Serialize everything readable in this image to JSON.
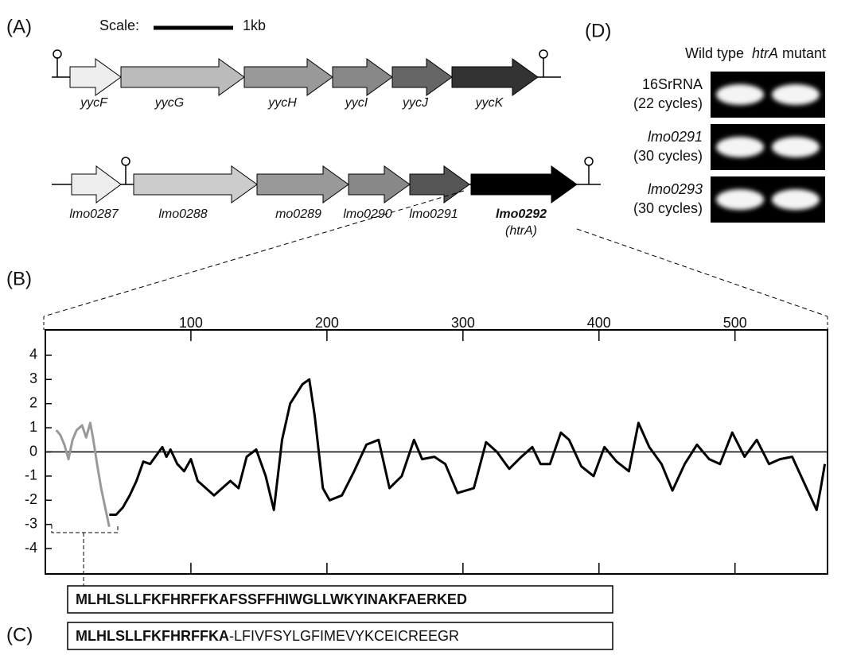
{
  "panel_a": {
    "label": "(A)",
    "scale_label": "Scale:",
    "scale_unit": "1kb",
    "operon1": {
      "genes": [
        "yycF",
        "yycG",
        "yycH",
        "yycI",
        "yycJ",
        "yycK"
      ]
    },
    "operon2": {
      "genes": [
        "lmo0287",
        "lmo0288",
        "mo0289",
        "lmo0290",
        "lmo0291",
        "lmo0292"
      ],
      "htra_label": "(htrA)"
    }
  },
  "chart_data": {
    "type": "line",
    "label": "(B)",
    "xlim": [
      -7,
      568
    ],
    "xticks": [
      100,
      200,
      300,
      400,
      500
    ],
    "ylim": [
      -5.05,
      5.05
    ],
    "yticks": [
      -4,
      -3,
      -2,
      -1,
      0,
      1,
      2,
      3,
      4
    ],
    "zero_line": true,
    "series": [
      {
        "color": "#999999",
        "x": [
          1,
          4,
          7,
          10,
          13,
          16,
          20,
          23,
          26,
          28,
          31,
          34,
          37,
          40
        ],
        "values": [
          0.9,
          0.7,
          0.3,
          -0.3,
          0.5,
          0.9,
          1.1,
          0.6,
          1.2,
          0.6,
          -0.5,
          -1.5,
          -2.3,
          -3.1
        ]
      },
      {
        "color": "#000000",
        "x": [
          40,
          45,
          50,
          55,
          60,
          65,
          70,
          79,
          82,
          85,
          90,
          95,
          100,
          105,
          117,
          129,
          135,
          141,
          148,
          155,
          161,
          167,
          173,
          182,
          187,
          191,
          197,
          202,
          211,
          220,
          229,
          238,
          246,
          255,
          264,
          270,
          279,
          287,
          296,
          308,
          317,
          325,
          334,
          343,
          351,
          357,
          364,
          372,
          378,
          387,
          396,
          404,
          413,
          422,
          429,
          437,
          446,
          454,
          463,
          472,
          481,
          489,
          498,
          507,
          516,
          525,
          533,
          542,
          551,
          560,
          563,
          566
        ],
        "values": [
          -2.6,
          -2.6,
          -2.3,
          -1.8,
          -1.2,
          -0.4,
          -0.5,
          0.2,
          -0.2,
          0.1,
          -0.5,
          -0.8,
          -0.3,
          -1.2,
          -1.8,
          -1.2,
          -1.5,
          -0.2,
          0.1,
          -1,
          -2.4,
          0.5,
          2.0,
          2.8,
          3.0,
          1.5,
          -1.5,
          -2,
          -1.8,
          -0.8,
          0.3,
          0.5,
          -1.5,
          -1,
          0.5,
          -0.3,
          -0.2,
          -0.5,
          -1.7,
          -1.5,
          0.4,
          0,
          -0.7,
          -0.2,
          0.2,
          -0.5,
          -0.5,
          0.8,
          0.5,
          -0.6,
          -1.0,
          0.2,
          -0.4,
          -0.8,
          1.2,
          0.2,
          -0.5,
          -1.6,
          -0.5,
          0.3,
          -0.3,
          -0.5,
          0.8,
          -0.2,
          0.5,
          -0.5,
          -0.3,
          -0.2,
          -1.3,
          -2.4,
          -1.5,
          -0.5
        ]
      }
    ]
  },
  "panel_c": {
    "label": "(C)",
    "sequence1": "MLHLSLLFKFHRFFKAFSSFFHIWGLLWKYINAKFAERKED",
    "sequence2_bold": "MLHLSLLFKFHRFFKA",
    "sequence2_rest": "-LFIVFSYLGFIMEVYKCEICREEGR"
  },
  "panel_d": {
    "label": "(D)",
    "column1": "Wild type",
    "column2_italic": "htrA",
    "column2_rest": " mutant",
    "rows": [
      {
        "name": "16SrRNA",
        "cycles": "(22 cycles)"
      },
      {
        "name": "lmo0291",
        "cycles": "(30 cycles)"
      },
      {
        "name": "lmo0293",
        "cycles": "(30 cycles)"
      }
    ]
  }
}
